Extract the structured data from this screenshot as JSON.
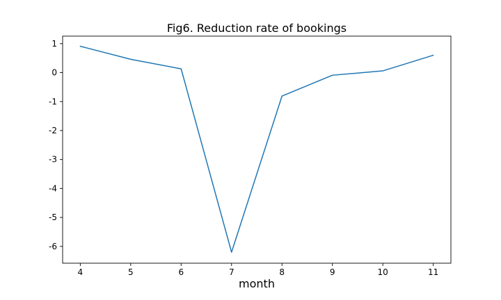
{
  "chart_data": {
    "type": "line",
    "title": "Fig6. Reduction rate of bookings",
    "xlabel": "month",
    "ylabel": "",
    "x": [
      4,
      5,
      6,
      7,
      8,
      9,
      10,
      11
    ],
    "series": [
      {
        "values": [
          0.91,
          0.46,
          0.13,
          -6.2,
          -0.81,
          -0.09,
          0.06,
          0.6
        ],
        "color": "#1f77b4"
      }
    ],
    "xlim": [
      3.65,
      11.35
    ],
    "ylim": [
      -6.58,
      1.26
    ],
    "xticks": [
      4,
      5,
      6,
      7,
      8,
      9,
      10,
      11
    ],
    "yticks": [
      1,
      0,
      -1,
      -2,
      -3,
      -4,
      -5,
      -6
    ],
    "grid": false,
    "legend": false
  }
}
